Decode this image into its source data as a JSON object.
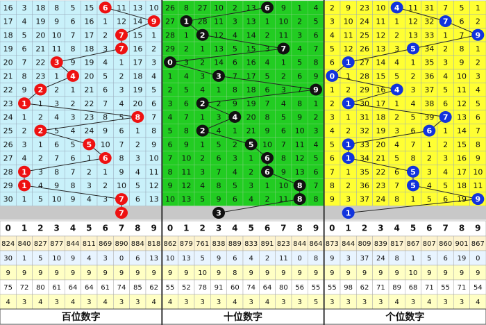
{
  "panels": [
    {
      "title": "百位数字",
      "rows": [
        [
          16,
          3,
          18,
          8,
          5,
          15,
          6,
          11,
          13,
          10
        ],
        [
          17,
          4,
          19,
          9,
          6,
          16,
          1,
          12,
          14,
          9
        ],
        [
          18,
          5,
          20,
          10,
          7,
          17,
          2,
          7,
          15,
          1
        ],
        [
          19,
          6,
          21,
          11,
          8,
          18,
          3,
          7,
          16,
          2
        ],
        [
          20,
          7,
          22,
          3,
          9,
          19,
          4,
          1,
          17,
          3
        ],
        [
          21,
          8,
          23,
          1,
          4,
          20,
          5,
          2,
          18,
          4
        ],
        [
          22,
          9,
          2,
          2,
          1,
          21,
          6,
          3,
          19,
          5
        ],
        [
          23,
          1,
          1,
          3,
          2,
          22,
          7,
          4,
          20,
          6
        ],
        [
          24,
          1,
          2,
          4,
          3,
          23,
          8,
          5,
          8,
          7
        ],
        [
          25,
          2,
          2,
          5,
          4,
          24,
          9,
          6,
          1,
          8
        ],
        [
          26,
          3,
          1,
          6,
          5,
          5,
          10,
          7,
          2,
          9
        ],
        [
          27,
          4,
          2,
          7,
          6,
          1,
          6,
          8,
          3,
          10
        ],
        [
          28,
          1,
          3,
          8,
          7,
          2,
          1,
          9,
          4,
          11
        ],
        [
          29,
          1,
          4,
          9,
          8,
          3,
          2,
          10,
          5,
          12
        ],
        [
          30,
          1,
          5,
          10,
          9,
          4,
          3,
          7,
          6,
          13
        ]
      ],
      "drawn": [
        6,
        9,
        7,
        7,
        3,
        4,
        2,
        1,
        8,
        2,
        5,
        6,
        1,
        1,
        7
      ],
      "next": 7,
      "header": [
        0,
        1,
        2,
        3,
        4,
        5,
        6,
        7,
        8,
        9
      ],
      "stats": [
        [
          824,
          840,
          827,
          877,
          844,
          811,
          869,
          890,
          884,
          818
        ],
        [
          30,
          1,
          5,
          10,
          9,
          4,
          3,
          0,
          6,
          13
        ],
        [
          9,
          9,
          9,
          9,
          9,
          9,
          9,
          9,
          9,
          9
        ],
        [
          75,
          72,
          80,
          61,
          64,
          64,
          61,
          74,
          85,
          62
        ],
        [
          4,
          3,
          4,
          3,
          4,
          3,
          4,
          3,
          3,
          4
        ]
      ]
    },
    {
      "title": "十位数字",
      "rows": [
        [
          26,
          8,
          27,
          10,
          2,
          13,
          6,
          9,
          1,
          4
        ],
        [
          27,
          1,
          28,
          11,
          3,
          13,
          1,
          10,
          2,
          5
        ],
        [
          28,
          1,
          2,
          12,
          4,
          14,
          2,
          11,
          3,
          6
        ],
        [
          29,
          2,
          1,
          13,
          5,
          15,
          3,
          7,
          4,
          7
        ],
        [
          0,
          3,
          2,
          14,
          6,
          16,
          4,
          1,
          5,
          8
        ],
        [
          1,
          4,
          3,
          3,
          7,
          17,
          5,
          2,
          6,
          9
        ],
        [
          2,
          5,
          4,
          1,
          8,
          18,
          6,
          3,
          7,
          9
        ],
        [
          3,
          6,
          2,
          2,
          9,
          19,
          7,
          4,
          8,
          1
        ],
        [
          4,
          7,
          1,
          3,
          4,
          20,
          8,
          5,
          9,
          2
        ],
        [
          5,
          8,
          2,
          4,
          1,
          21,
          9,
          6,
          10,
          3
        ],
        [
          6,
          9,
          1,
          5,
          2,
          5,
          10,
          7,
          11,
          4
        ],
        [
          7,
          10,
          2,
          6,
          3,
          1,
          6,
          8,
          12,
          5
        ],
        [
          8,
          11,
          3,
          7,
          4,
          2,
          6,
          9,
          13,
          6
        ],
        [
          9,
          12,
          4,
          8,
          5,
          3,
          1,
          10,
          8,
          7
        ],
        [
          10,
          13,
          5,
          9,
          6,
          4,
          2,
          11,
          8,
          8
        ]
      ],
      "drawn": [
        6,
        1,
        2,
        7,
        0,
        3,
        9,
        2,
        4,
        2,
        5,
        6,
        6,
        8,
        8
      ],
      "next": 3,
      "header": [
        0,
        1,
        2,
        3,
        4,
        5,
        6,
        7,
        8,
        9
      ],
      "stats": [
        [
          862,
          879,
          761,
          838,
          889,
          833,
          891,
          823,
          844,
          864
        ],
        [
          10,
          13,
          5,
          9,
          6,
          4,
          2,
          11,
          0,
          8
        ],
        [
          9,
          9,
          10,
          9,
          8,
          9,
          9,
          9,
          9,
          9
        ],
        [
          55,
          52,
          78,
          91,
          60,
          74,
          64,
          80,
          56,
          55
        ],
        [
          4,
          3,
          3,
          3,
          4,
          3,
          4,
          3,
          3,
          5
        ]
      ]
    },
    {
      "title": "个位数字",
      "rows": [
        [
          2,
          9,
          23,
          10,
          4,
          11,
          31,
          7,
          5,
          1
        ],
        [
          3,
          10,
          24,
          11,
          1,
          12,
          32,
          7,
          6,
          2
        ],
        [
          4,
          11,
          25,
          12,
          2,
          13,
          33,
          1,
          7,
          9
        ],
        [
          5,
          12,
          26,
          13,
          3,
          5,
          34,
          2,
          8,
          1
        ],
        [
          6,
          1,
          27,
          14,
          4,
          1,
          35,
          3,
          9,
          2
        ],
        [
          0,
          1,
          28,
          15,
          5,
          2,
          36,
          4,
          10,
          3
        ],
        [
          1,
          2,
          29,
          16,
          4,
          3,
          37,
          5,
          11,
          4
        ],
        [
          2,
          1,
          30,
          17,
          1,
          4,
          38,
          6,
          12,
          5
        ],
        [
          3,
          1,
          31,
          18,
          2,
          5,
          39,
          7,
          13,
          6
        ],
        [
          4,
          2,
          32,
          19,
          3,
          6,
          6,
          1,
          14,
          7
        ],
        [
          5,
          1,
          33,
          20,
          4,
          7,
          1,
          2,
          15,
          8
        ],
        [
          6,
          1,
          34,
          21,
          5,
          8,
          2,
          3,
          16,
          9
        ],
        [
          7,
          1,
          35,
          22,
          6,
          5,
          3,
          4,
          17,
          10
        ],
        [
          8,
          2,
          36,
          23,
          7,
          5,
          4,
          5,
          18,
          11
        ],
        [
          9,
          3,
          37,
          24,
          8,
          1,
          5,
          6,
          19,
          9
        ]
      ],
      "drawn": [
        4,
        7,
        9,
        5,
        1,
        0,
        4,
        1,
        7,
        6,
        1,
        1,
        5,
        5,
        9
      ],
      "next": 1,
      "header": [
        0,
        1,
        2,
        3,
        4,
        5,
        6,
        7,
        8,
        9
      ],
      "stats": [
        [
          873,
          844,
          809,
          839,
          817,
          867,
          807,
          860,
          901,
          867
        ],
        [
          9,
          3,
          37,
          24,
          8,
          1,
          5,
          6,
          19,
          0
        ],
        [
          9,
          9,
          9,
          9,
          9,
          10,
          9,
          9,
          9,
          9
        ],
        [
          55,
          98,
          62,
          71,
          89,
          68,
          71,
          55,
          71,
          54
        ],
        [
          3,
          3,
          3,
          3,
          4,
          3,
          4,
          3,
          3,
          4
        ]
      ]
    }
  ]
}
